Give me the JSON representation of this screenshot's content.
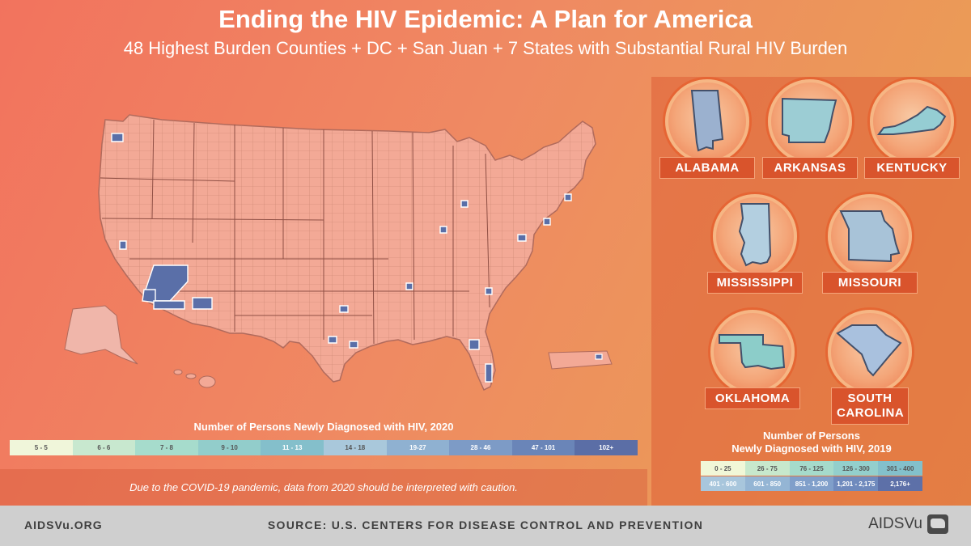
{
  "header": {
    "title": "Ending the HIV Epidemic: A Plan for America",
    "subtitle": "48 Highest Burden Counties + DC + San Juan + 7 States with Substantial Rural HIV Burden"
  },
  "states": [
    {
      "name": "ALABAMA",
      "color": "#9bb1cf"
    },
    {
      "name": "ARKANSAS",
      "color": "#9ccdd4"
    },
    {
      "name": "KENTUCKY",
      "color": "#95cdd3"
    },
    {
      "name": "MISSISSIPPI",
      "color": "#b3cfe0"
    },
    {
      "name": "MISSOURI",
      "color": "#a8c3d8"
    },
    {
      "name": "OKLAHOMA",
      "color": "#8ccdc9"
    },
    {
      "name": "SOUTH CAROLINA",
      "color": "#a9c1de"
    }
  ],
  "legend_2020": {
    "title": "Number of Persons Newly Diagnosed with HIV, 2020",
    "bins": [
      {
        "label": "5 - 5",
        "color": "#f0f6da",
        "text": "#555555"
      },
      {
        "label": "6 - 6",
        "color": "#c8e8cf",
        "text": "#555555"
      },
      {
        "label": "7 - 8",
        "color": "#a6dccc",
        "text": "#555555"
      },
      {
        "label": "9 - 10",
        "color": "#92cdcb",
        "text": "#555555"
      },
      {
        "label": "11 - 13",
        "color": "#84bfcb",
        "text": "#ffffff"
      },
      {
        "label": "14 - 18",
        "color": "#a9c8db",
        "text": "#555555"
      },
      {
        "label": "19-27",
        "color": "#8fb1d1",
        "text": "#ffffff"
      },
      {
        "label": "28 - 46",
        "color": "#7d9bc6",
        "text": "#ffffff"
      },
      {
        "label": "47 - 101",
        "color": "#6a85b8",
        "text": "#ffffff"
      },
      {
        "label": "102+",
        "color": "#5b6ea6",
        "text": "#ffffff"
      }
    ]
  },
  "legend_2019": {
    "title_line1": "Number of Persons",
    "title_line2": "Newly Diagnosed with HIV, 2019",
    "rows": [
      [
        {
          "label": "0 - 25",
          "color": "#f1f7d7",
          "text": "#555555"
        },
        {
          "label": "26 - 75",
          "color": "#c7e8cc",
          "text": "#555555"
        },
        {
          "label": "76 - 125",
          "color": "#a5dbcb",
          "text": "#555555"
        },
        {
          "label": "126 - 300",
          "color": "#93cfcc",
          "text": "#555555"
        },
        {
          "label": "301 - 400",
          "color": "#83c0cb",
          "text": "#555555"
        }
      ],
      [
        {
          "label": "401 - 600",
          "color": "#a8c6dc",
          "text": "#ffffff"
        },
        {
          "label": "601 - 850",
          "color": "#94b5d4",
          "text": "#ffffff"
        },
        {
          "label": "851 - 1,200",
          "color": "#809fca",
          "text": "#ffffff"
        },
        {
          "label": "1,201 - 2,175",
          "color": "#6f8abd",
          "text": "#ffffff"
        },
        {
          "label": "2,176+",
          "color": "#5d70a8",
          "text": "#ffffff"
        }
      ]
    ]
  },
  "caution": "Due to the COVID-19 pandemic, data from 2020 should be interpreted with caution.",
  "footer": {
    "left": "AIDSVu.ORG",
    "source": "SOURCE: U.S. CENTERS FOR DISEASE CONTROL AND PREVENTION",
    "logo": "AIDSVu"
  },
  "map_colors": {
    "base": "#f3a996",
    "county_line": "#b06a5c",
    "highlight": "#5a6fa8",
    "alaska": "#f0b6aa"
  }
}
